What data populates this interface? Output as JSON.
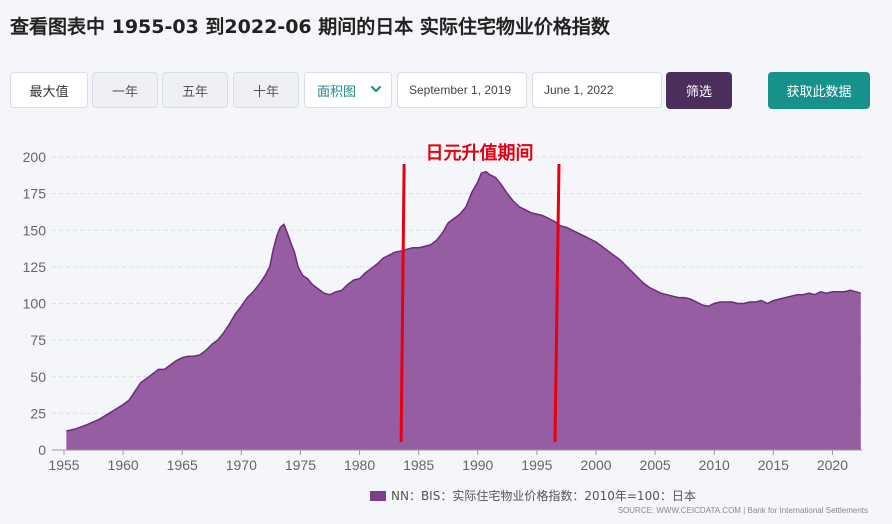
{
  "page": {
    "title": "查看图表中 1955-03 到2022-06 期间的日本 实际住宅物业价格指数"
  },
  "controls": {
    "range_buttons": [
      "最大值",
      "一年",
      "五年",
      "十年"
    ],
    "chart_type": "面积图",
    "start_date": "September 1, 2019",
    "end_date": "June 1, 2022",
    "filter_label": "筛选",
    "get_data_label": "获取此数据"
  },
  "colors": {
    "area_fill": "#8e4f9a",
    "area_line": "#6a2d78",
    "annotation": "#e60012",
    "filter_button": "#4a2f5c",
    "data_button": "#17918b",
    "grid": "#dcdfe5"
  },
  "chart_data": {
    "type": "area",
    "x_ticks": [
      1955,
      1960,
      1965,
      1970,
      1975,
      1980,
      1985,
      1990,
      1995,
      2000,
      2005,
      2010,
      2015,
      2020
    ],
    "y_ticks": [
      0,
      25,
      50,
      75,
      100,
      125,
      150,
      175,
      200
    ],
    "xlim": [
      1955,
      2022.5
    ],
    "ylim": [
      0,
      200
    ],
    "grid": true,
    "annotation": {
      "text": "日元升值期间",
      "start_year": 1983.6,
      "end_year": 1996.7
    },
    "series": [
      {
        "name": "NN：BIS：实际住宅物业价格指数：2010年=100：日本",
        "points": [
          [
            1955.2,
            13
          ],
          [
            1956,
            14.5
          ],
          [
            1957,
            17.5
          ],
          [
            1958,
            21
          ],
          [
            1959,
            26
          ],
          [
            1960,
            31
          ],
          [
            1960.5,
            34
          ],
          [
            1961,
            40
          ],
          [
            1961.5,
            46
          ],
          [
            1962,
            49
          ],
          [
            1962.5,
            52
          ],
          [
            1963,
            55
          ],
          [
            1963.5,
            55
          ],
          [
            1964,
            58
          ],
          [
            1964.5,
            61
          ],
          [
            1965,
            63
          ],
          [
            1965.5,
            64
          ],
          [
            1966,
            64
          ],
          [
            1966.5,
            65
          ],
          [
            1967,
            68
          ],
          [
            1967.5,
            72
          ],
          [
            1968,
            75
          ],
          [
            1968.5,
            80
          ],
          [
            1969,
            86
          ],
          [
            1969.5,
            93
          ],
          [
            1970,
            98
          ],
          [
            1970.5,
            104
          ],
          [
            1971,
            108
          ],
          [
            1971.5,
            113
          ],
          [
            1972,
            119
          ],
          [
            1972.4,
            125
          ],
          [
            1972.7,
            137
          ],
          [
            1973,
            146
          ],
          [
            1973.3,
            152
          ],
          [
            1973.6,
            154
          ],
          [
            1973.9,
            148
          ],
          [
            1974.2,
            141
          ],
          [
            1974.5,
            135
          ],
          [
            1974.8,
            125
          ],
          [
            1975.2,
            119
          ],
          [
            1975.6,
            117
          ],
          [
            1976,
            113
          ],
          [
            1976.5,
            110
          ],
          [
            1977,
            107
          ],
          [
            1977.5,
            106
          ],
          [
            1978,
            108
          ],
          [
            1978.5,
            109
          ],
          [
            1979,
            113
          ],
          [
            1979.5,
            116
          ],
          [
            1980,
            117
          ],
          [
            1980.5,
            121
          ],
          [
            1981,
            124
          ],
          [
            1981.5,
            127
          ],
          [
            1982,
            131
          ],
          [
            1982.5,
            133
          ],
          [
            1983,
            135
          ],
          [
            1983.6,
            136
          ],
          [
            1984,
            137
          ],
          [
            1984.5,
            138
          ],
          [
            1985,
            138
          ],
          [
            1985.5,
            139
          ],
          [
            1986,
            140
          ],
          [
            1986.5,
            143
          ],
          [
            1987,
            148
          ],
          [
            1987.5,
            155
          ],
          [
            1988,
            158
          ],
          [
            1988.5,
            161
          ],
          [
            1989,
            166
          ],
          [
            1989.5,
            176
          ],
          [
            1990,
            183
          ],
          [
            1990.3,
            189
          ],
          [
            1990.7,
            190
          ],
          [
            1991,
            188
          ],
          [
            1991.5,
            186
          ],
          [
            1992,
            181
          ],
          [
            1992.5,
            175
          ],
          [
            1993,
            170
          ],
          [
            1993.5,
            166
          ],
          [
            1994,
            164
          ],
          [
            1994.5,
            162
          ],
          [
            1995,
            161
          ],
          [
            1995.5,
            160
          ],
          [
            1996,
            158
          ],
          [
            1996.5,
            156
          ],
          [
            1997,
            153
          ],
          [
            1997.5,
            152
          ],
          [
            1998,
            150
          ],
          [
            1998.5,
            148
          ],
          [
            1999,
            146
          ],
          [
            1999.5,
            144
          ],
          [
            2000,
            142
          ],
          [
            2000.5,
            139
          ],
          [
            2001,
            136
          ],
          [
            2001.5,
            133
          ],
          [
            2002,
            130
          ],
          [
            2002.5,
            126
          ],
          [
            2003,
            122
          ],
          [
            2003.5,
            118
          ],
          [
            2004,
            114
          ],
          [
            2004.5,
            111
          ],
          [
            2005,
            109
          ],
          [
            2005.5,
            107
          ],
          [
            2006,
            106
          ],
          [
            2006.5,
            105
          ],
          [
            2007,
            104
          ],
          [
            2007.5,
            104
          ],
          [
            2008,
            103
          ],
          [
            2008.5,
            101
          ],
          [
            2009,
            99
          ],
          [
            2009.5,
            98
          ],
          [
            2010,
            100
          ],
          [
            2010.5,
            101
          ],
          [
            2011,
            101
          ],
          [
            2011.5,
            101
          ],
          [
            2012,
            100
          ],
          [
            2012.5,
            100
          ],
          [
            2013,
            101
          ],
          [
            2013.5,
            101
          ],
          [
            2014,
            102
          ],
          [
            2014.5,
            100
          ],
          [
            2015,
            102
          ],
          [
            2015.5,
            103
          ],
          [
            2016,
            104
          ],
          [
            2016.5,
            105
          ],
          [
            2017,
            106
          ],
          [
            2017.5,
            106
          ],
          [
            2018,
            107
          ],
          [
            2018.5,
            106
          ],
          [
            2019,
            108
          ],
          [
            2019.5,
            107
          ],
          [
            2020,
            108
          ],
          [
            2020.5,
            108
          ],
          [
            2021,
            108
          ],
          [
            2021.5,
            109
          ],
          [
            2022,
            108
          ],
          [
            2022.4,
            107
          ]
        ]
      }
    ],
    "source": "SOURCE: WWW.CEICDATA.COM | Bank for International Settlements"
  }
}
